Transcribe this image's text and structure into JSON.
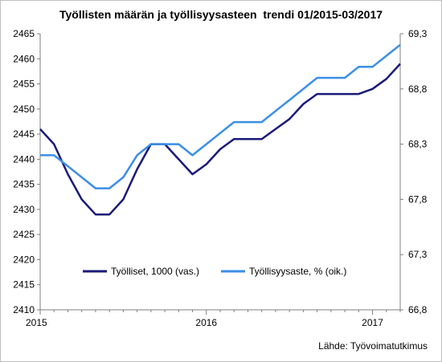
{
  "chart_data": {
    "type": "line",
    "title": "Työllisten määrän ja työllisyysasteen  trendi 01/2015-03/2017",
    "source": "Lähde: Työvoimatutkimus",
    "x_tick_labels": [
      "2015",
      "2016",
      "2017"
    ],
    "y_left": {
      "lim": [
        2410,
        2465
      ],
      "ticks": [
        2410,
        2415,
        2420,
        2425,
        2430,
        2435,
        2440,
        2445,
        2450,
        2455,
        2460,
        2465
      ]
    },
    "y_right": {
      "lim": [
        66.8,
        69.3
      ],
      "ticks": [
        66.8,
        67.3,
        67.8,
        68.3,
        68.8,
        69.3
      ],
      "tick_labels": [
        "66,8",
        "67,3",
        "67,8",
        "68,3",
        "68,8",
        "69,3"
      ]
    },
    "legend_position": "lower-middle",
    "series": [
      {
        "name": "Työlliset, 1000 (vas.)",
        "axis": "left",
        "color": "#1a1a7a",
        "values": [
          2446,
          2443,
          2437,
          2432,
          2429,
          2429,
          2432,
          2438,
          2443,
          2443,
          2440,
          2437,
          2439,
          2442,
          2444,
          2444,
          2444,
          2446,
          2448,
          2451,
          2453,
          2453,
          2453,
          2453,
          2454,
          2456,
          2459
        ]
      },
      {
        "name": "Työllisyysaste, % (oik.)",
        "axis": "right",
        "color": "#3b8ee6",
        "values": [
          68.2,
          68.2,
          68.1,
          68.0,
          67.9,
          67.9,
          68.0,
          68.2,
          68.3,
          68.3,
          68.3,
          68.2,
          68.3,
          68.4,
          68.5,
          68.5,
          68.5,
          68.6,
          68.7,
          68.8,
          68.9,
          68.9,
          68.9,
          69.0,
          69.0,
          69.1,
          69.2
        ]
      }
    ]
  }
}
